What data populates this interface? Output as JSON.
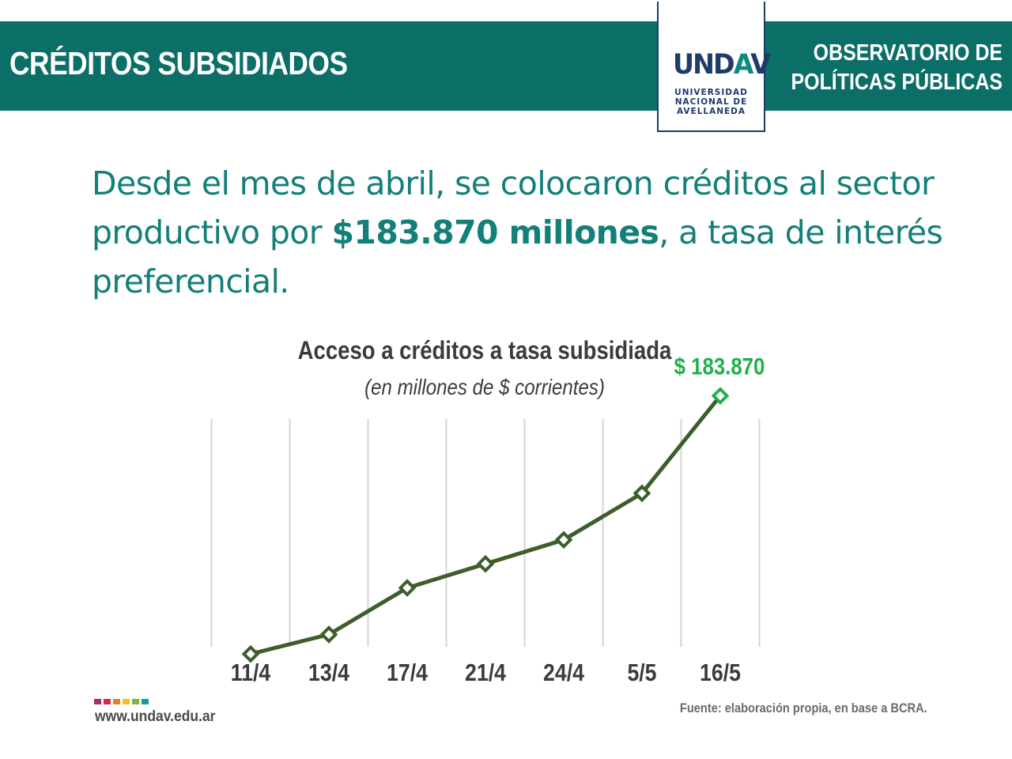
{
  "header": {
    "title": "CRÉDITOS SUBSIDIADOS",
    "org_line1": "OBSERVATORIO DE",
    "org_line2": "POLÍTICAS PÚBLICAS",
    "logo": {
      "mark_main": "UND",
      "mark_accent": "A",
      "mark_end": "V",
      "line1": "UNIVERSIDAD",
      "line2": "NACIONAL DE",
      "line3": "AVELLANEDA"
    }
  },
  "lead": {
    "part1": "Desde el mes de abril, se colocaron créditos al sector productivo por ",
    "highlight": "$183.870 millones",
    "part2": ", a tasa de interés preferencial."
  },
  "chart_data": {
    "type": "line",
    "title": "Acceso a créditos a tasa subsidiada",
    "subtitle": "(en millones de $ corrientes)",
    "categories": [
      "11/4",
      "13/4",
      "17/4",
      "21/4",
      "24/4",
      "5/5",
      "16/5"
    ],
    "values": [
      12000,
      25000,
      56000,
      72000,
      88000,
      119000,
      183870
    ],
    "data_labels": [
      "",
      "",
      "",
      "",
      "",
      "",
      "$ 183.870"
    ],
    "ylim": [
      0,
      200000
    ],
    "grid": "vertical",
    "legend": "none",
    "colors": {
      "line": "#3d5e2a",
      "highlight": "#1fb04c",
      "grid": "#d4d4d4",
      "tick": "#3b3b3b"
    }
  },
  "footer": {
    "website": "www.undav.edu.ar",
    "source": "Fuente: elaboración propia, en base a BCRA.",
    "dot_colors": [
      "#a22e6e",
      "#d8283e",
      "#f07d1d",
      "#f2c21b",
      "#7ab643",
      "#1a9a9b"
    ]
  },
  "colors": {
    "banner": "#0b6e67",
    "lead_text": "#127f78",
    "logo_navy": "#1d3b6b"
  }
}
